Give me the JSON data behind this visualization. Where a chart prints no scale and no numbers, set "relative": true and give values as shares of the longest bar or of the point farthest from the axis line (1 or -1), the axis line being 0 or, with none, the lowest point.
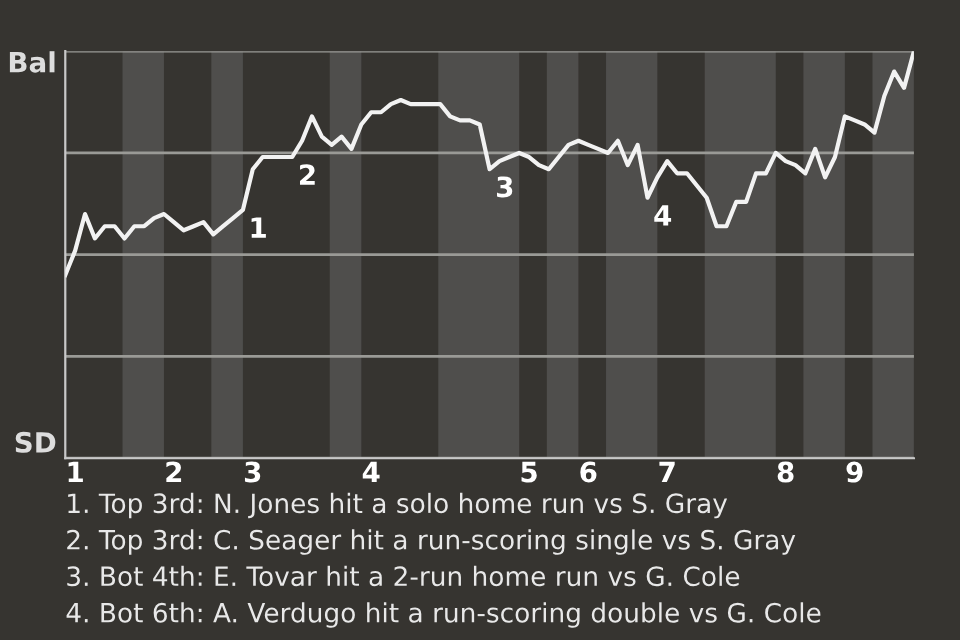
{
  "chart_data": {
    "type": "line",
    "categories": [
      null,
      "1",
      null,
      null,
      null,
      null,
      null,
      null,
      null,
      null,
      null,
      "2",
      null,
      null,
      null,
      null,
      null,
      null,
      null,
      "3",
      null,
      null,
      null,
      null,
      null,
      null,
      null,
      null,
      null,
      null,
      null,
      "4",
      null,
      null,
      null,
      null,
      null,
      null,
      null,
      null,
      null,
      null,
      null,
      null,
      null,
      null,
      null,
      "5",
      null,
      null,
      null,
      null,
      null,
      "6",
      null,
      null,
      null,
      null,
      null,
      null,
      null,
      "7",
      null,
      null,
      null,
      null,
      null,
      null,
      null,
      null,
      null,
      null,
      null,
      "8",
      null,
      null,
      null,
      null,
      null,
      null,
      "9",
      null,
      null,
      null,
      null,
      null,
      null
    ],
    "series": [
      {
        "color": "#f2f2f2",
        "values": [
          0.45,
          0.51,
          0.6,
          0.54,
          0.57,
          0.57,
          0.54,
          0.57,
          0.57,
          0.59,
          0.6,
          0.58,
          0.56,
          0.57,
          0.58,
          0.55,
          0.57,
          0.59,
          0.61,
          0.71,
          0.74,
          0.74,
          0.74,
          0.74,
          0.78,
          0.84,
          0.79,
          0.77,
          0.79,
          0.76,
          0.82,
          0.85,
          0.85,
          0.87,
          0.88,
          0.87,
          0.87,
          0.87,
          0.87,
          0.84,
          0.83,
          0.83,
          0.82,
          0.71,
          0.73,
          0.74,
          0.75,
          0.74,
          0.72,
          0.71,
          0.74,
          0.77,
          0.78,
          0.77,
          0.76,
          0.75,
          0.78,
          0.72,
          0.77,
          0.64,
          0.69,
          0.73,
          0.7,
          0.7,
          0.67,
          0.64,
          0.57,
          0.57,
          0.63,
          0.63,
          0.7,
          0.7,
          0.75,
          0.73,
          0.72,
          0.7,
          0.76,
          0.69,
          0.74,
          0.84,
          0.83,
          0.82,
          0.8,
          0.89,
          0.95,
          0.91,
          1.0
        ]
      }
    ],
    "relative": true,
    "grid": "y",
    "marker": "none",
    "line_style": "solid",
    "annotations": [
      "Bal",
      "SD",
      "1",
      "2",
      "3",
      "4",
      "1. Top 3rd: N. Jones hit a solo home run vs S. Gray",
      "2. Top 3rd: C. Seager hit a run-scoring single vs S. Gray",
      "3. Bot 4th: E. Tovar hit a 2-run home run vs G. Cole",
      "4. Bot 6th: A. Verdugo hit a run-scoring double vs G. Cole"
    ]
  }
}
